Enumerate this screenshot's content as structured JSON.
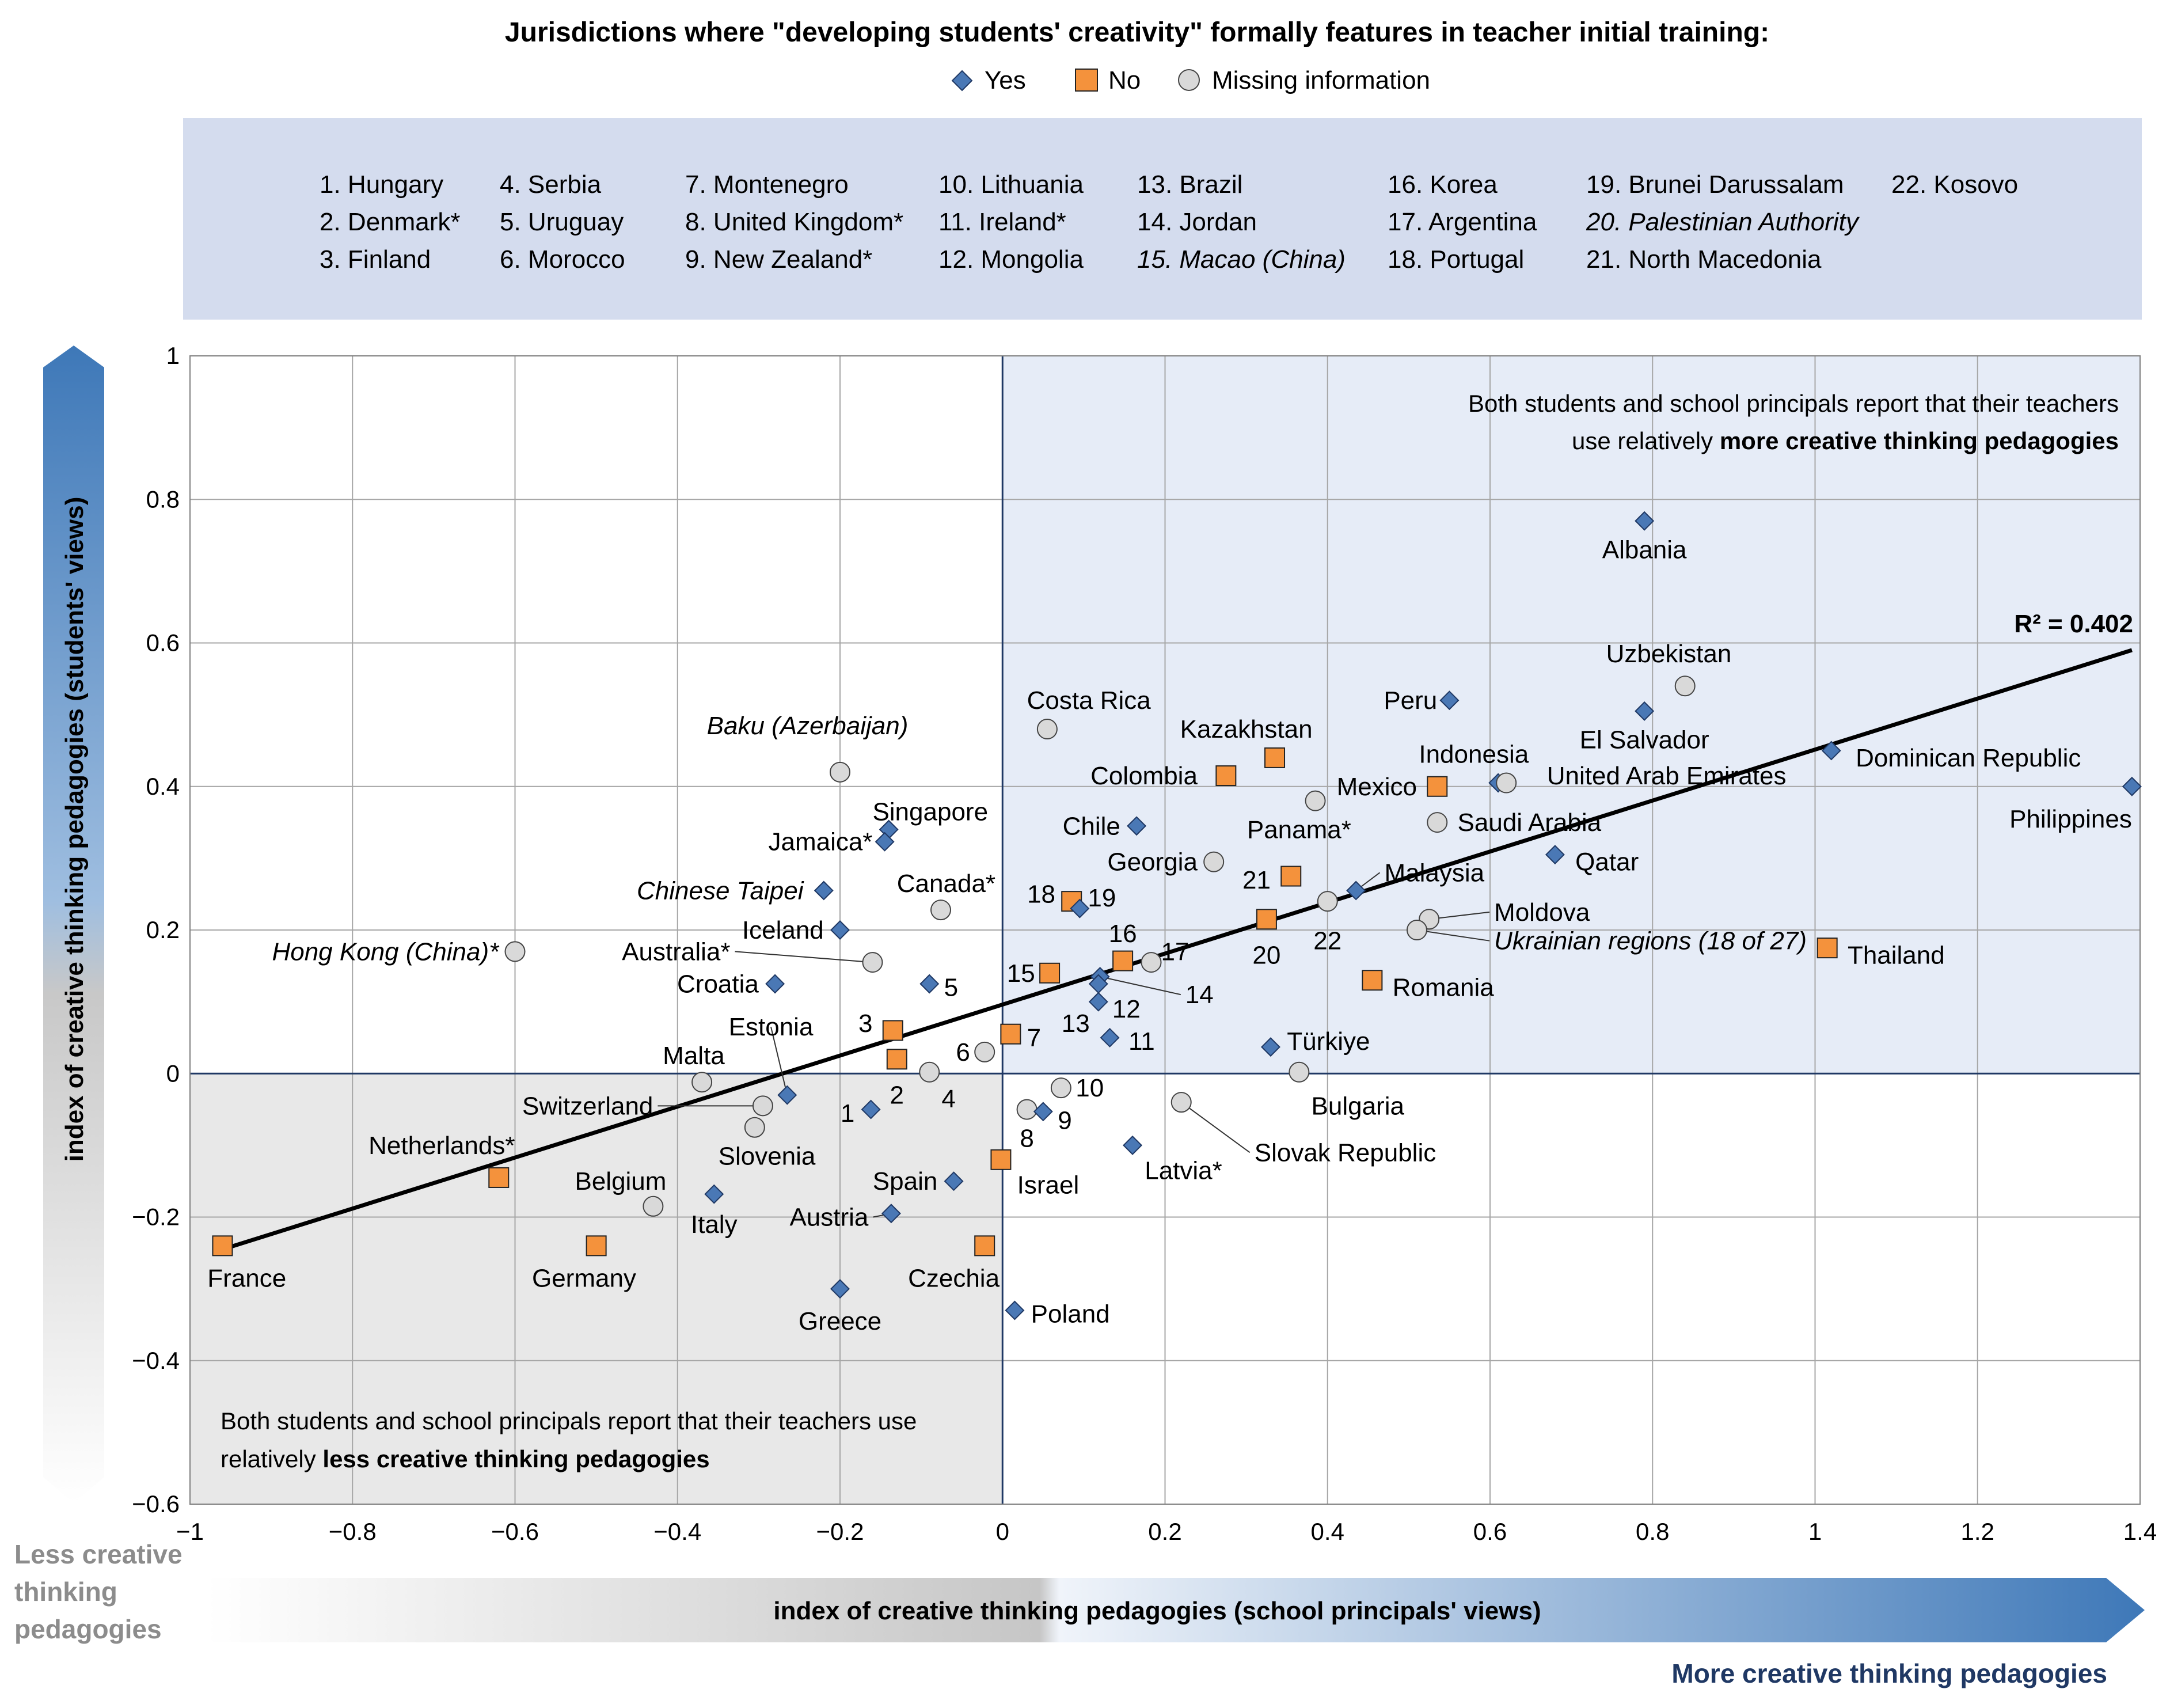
{
  "chart_data": {
    "type": "scatter",
    "title": "Jurisdictions where \"developing students' creativity\" formally features in teacher initial training:",
    "legend": [
      {
        "key": "yes",
        "label": "Yes"
      },
      {
        "key": "no",
        "label": "No"
      },
      {
        "key": "missing",
        "label": "Missing information"
      }
    ],
    "colors": {
      "yes": "#4a78b5",
      "no": "#f4923c",
      "missing": "#d9d9d9",
      "upper_right_shade": "#e6ecf7",
      "lower_left_shade": "#e8e8e8",
      "key_box": "#d4dcee",
      "accent_dark": "#1f3864",
      "arrow_blue": "#3e78b8",
      "arrow_gray": "#bdbdbd",
      "gray_text": "#8c8c8c"
    },
    "key_columns": [
      [
        "1. Hungary",
        "2. Denmark*",
        "3. Finland"
      ],
      [
        "4. Serbia",
        "5. Uruguay",
        "6. Morocco"
      ],
      [
        "7. Montenegro",
        "8. United Kingdom*",
        "9. New Zealand*"
      ],
      [
        "10. Lithuania",
        "11. Ireland*",
        "12. Mongolia"
      ],
      [
        "13. Brazil",
        "14. Jordan",
        "15. Macao (China)"
      ],
      [
        "16. Korea",
        "17. Argentina",
        "18. Portugal"
      ],
      [
        "19. Brunei Darussalam",
        "20. Palestinian Authority",
        "21. North Macedonia"
      ],
      [
        "22. Kosovo"
      ]
    ],
    "xlabel": "index of creative thinking pedagogies (school principals' views)",
    "ylabel": "index of creative thinking pedagogies (students' views)",
    "xlim": [
      -1,
      1.4
    ],
    "ylim": [
      -0.6,
      1
    ],
    "x_ticks": [
      {
        "v": -1,
        "t": "−1"
      },
      {
        "v": -0.8,
        "t": "−0.8"
      },
      {
        "v": -0.6,
        "t": "−0.6"
      },
      {
        "v": -0.4,
        "t": "−0.4"
      },
      {
        "v": -0.2,
        "t": "−0.2"
      },
      {
        "v": 0,
        "t": "0"
      },
      {
        "v": 0.2,
        "t": "0.2"
      },
      {
        "v": 0.4,
        "t": "0.4"
      },
      {
        "v": 0.6,
        "t": "0.6"
      },
      {
        "v": 0.8,
        "t": "0.8"
      },
      {
        "v": 1,
        "t": "1"
      },
      {
        "v": 1.2,
        "t": "1.2"
      },
      {
        "v": 1.4,
        "t": "1.4"
      }
    ],
    "y_ticks": [
      {
        "v": 1,
        "t": "1"
      },
      {
        "v": 0.8,
        "t": "0.8"
      },
      {
        "v": 0.6,
        "t": "0.6"
      },
      {
        "v": 0.4,
        "t": "0.4"
      },
      {
        "v": 0.2,
        "t": "0.2"
      },
      {
        "v": 0,
        "t": "0"
      },
      {
        "v": -0.2,
        "t": "−0.2"
      },
      {
        "v": -0.4,
        "t": "−0.4"
      },
      {
        "v": -0.6,
        "t": "−0.6"
      }
    ],
    "trendline": {
      "x": [
        -0.96,
        1.39
      ],
      "y": [
        -0.245,
        0.59
      ],
      "r2_label": "R² = 0.402"
    },
    "quadrant_notes": {
      "upper_right_line1": "Both students and school principals report that their teachers",
      "upper_right_line2_plain": "use relatively ",
      "upper_right_line2_bold": "more creative thinking pedagogies",
      "lower_left_line1": "Both students and school principals report that their teachers use",
      "lower_left_line2_plain": "relatively ",
      "lower_left_line2_bold": "less creative thinking pedagogies"
    },
    "corner_labels": {
      "less": [
        "Less creative",
        "thinking",
        "pedagogies"
      ],
      "more": "More creative thinking pedagogies"
    },
    "points": [
      {
        "name": "Albania",
        "x": 0.79,
        "y": 0.77,
        "cat": "yes",
        "lx": 0.79,
        "ly": 0.73,
        "anchor": "middle"
      },
      {
        "name": "Uzbekistan",
        "x": 0.84,
        "y": 0.54,
        "cat": "missing",
        "lx": 0.82,
        "ly": 0.585,
        "anchor": "middle"
      },
      {
        "name": "Peru",
        "x": 0.55,
        "y": 0.52,
        "cat": "yes",
        "lx": 0.535,
        "ly": 0.52,
        "anchor": "end"
      },
      {
        "name": "El Salvador",
        "x": 0.79,
        "y": 0.505,
        "cat": "yes",
        "lx": 0.79,
        "ly": 0.465,
        "anchor": "middle"
      },
      {
        "name": "Dominican Republic",
        "x": 1.02,
        "y": 0.45,
        "cat": "yes",
        "lx": 1.05,
        "ly": 0.44,
        "anchor": "start"
      },
      {
        "name": "Philippines",
        "x": 1.39,
        "y": 0.4,
        "cat": "yes",
        "lx": 1.39,
        "ly": 0.355,
        "anchor": "end"
      },
      {
        "name": "Costa Rica",
        "x": 0.055,
        "y": 0.48,
        "cat": "missing",
        "lx": 0.03,
        "ly": 0.52,
        "anchor": "start"
      },
      {
        "name": "Kazakhstan",
        "x": 0.335,
        "y": 0.44,
        "cat": "no",
        "lx": 0.3,
        "ly": 0.48,
        "anchor": "middle"
      },
      {
        "name": "Colombia",
        "x": 0.275,
        "y": 0.415,
        "cat": "no",
        "lx": 0.24,
        "ly": 0.415,
        "anchor": "end"
      },
      {
        "name": "Indonesia",
        "x": 0.61,
        "y": 0.405,
        "cat": "yes",
        "lx": 0.58,
        "ly": 0.445,
        "anchor": "middle"
      },
      {
        "name": "United Arab Emirates",
        "x": 0.62,
        "y": 0.405,
        "cat": "missing",
        "lx": 0.67,
        "ly": 0.415,
        "anchor": "start"
      },
      {
        "name": "Mexico",
        "x": 0.535,
        "y": 0.4,
        "cat": "no",
        "lx": 0.51,
        "ly": 0.4,
        "anchor": "end"
      },
      {
        "name": "Panama*",
        "x": 0.385,
        "y": 0.38,
        "cat": "missing",
        "lx": 0.365,
        "ly": 0.34,
        "anchor": "middle"
      },
      {
        "name": "Saudi Arabia",
        "x": 0.535,
        "y": 0.35,
        "cat": "missing",
        "lx": 0.56,
        "ly": 0.35,
        "anchor": "start"
      },
      {
        "name": "Chile",
        "x": 0.165,
        "y": 0.345,
        "cat": "yes",
        "lx": 0.145,
        "ly": 0.345,
        "anchor": "end"
      },
      {
        "name": "Qatar",
        "x": 0.68,
        "y": 0.305,
        "cat": "yes",
        "lx": 0.705,
        "ly": 0.295,
        "anchor": "start"
      },
      {
        "name": "Georgia",
        "x": 0.26,
        "y": 0.295,
        "cat": "missing",
        "lx": 0.24,
        "ly": 0.295,
        "anchor": "end"
      },
      {
        "name": "21",
        "x": 0.355,
        "y": 0.275,
        "cat": "no",
        "lx": 0.33,
        "ly": 0.27,
        "anchor": "end"
      },
      {
        "name": "Malaysia",
        "x": 0.435,
        "y": 0.255,
        "cat": "yes",
        "lx": 0.47,
        "ly": 0.28,
        "anchor": "start",
        "leader": true
      },
      {
        "name": "18",
        "x": 0.085,
        "y": 0.24,
        "cat": "no",
        "lx": 0.065,
        "ly": 0.25,
        "anchor": "end"
      },
      {
        "name": "19",
        "x": 0.095,
        "y": 0.23,
        "cat": "yes",
        "lx": 0.105,
        "ly": 0.245,
        "anchor": "start"
      },
      {
        "name": "22",
        "x": 0.4,
        "y": 0.24,
        "cat": "missing",
        "lx": 0.4,
        "ly": 0.185,
        "anchor": "middle"
      },
      {
        "name": "Moldova",
        "x": 0.525,
        "y": 0.215,
        "cat": "missing",
        "lx": 0.605,
        "ly": 0.225,
        "anchor": "start",
        "leader": true
      },
      {
        "name": "20",
        "x": 0.325,
        "y": 0.215,
        "cat": "no",
        "lx": 0.325,
        "ly": 0.165,
        "anchor": "middle"
      },
      {
        "name": "Ukrainian regions (18 of 27)",
        "x": 0.51,
        "y": 0.2,
        "cat": "missing",
        "lx": 0.605,
        "ly": 0.185,
        "anchor": "start",
        "leader": true
      },
      {
        "name": "Thailand",
        "x": 1.015,
        "y": 0.175,
        "cat": "no",
        "lx": 1.04,
        "ly": 0.165,
        "anchor": "start"
      },
      {
        "name": "16",
        "x": 0.148,
        "y": 0.157,
        "cat": "no",
        "lx": 0.148,
        "ly": 0.195,
        "anchor": "middle"
      },
      {
        "name": "17",
        "x": 0.183,
        "y": 0.155,
        "cat": "missing",
        "lx": 0.195,
        "ly": 0.17,
        "anchor": "start"
      },
      {
        "name": "15",
        "x": 0.058,
        "y": 0.14,
        "cat": "no",
        "lx": 0.04,
        "ly": 0.14,
        "anchor": "end"
      },
      {
        "name": "14",
        "x": 0.12,
        "y": 0.135,
        "cat": "yes",
        "lx": 0.225,
        "ly": 0.11,
        "anchor": "start",
        "leader": true
      },
      {
        "name": "Romania",
        "x": 0.455,
        "y": 0.13,
        "cat": "no",
        "lx": 0.48,
        "ly": 0.12,
        "anchor": "start"
      },
      {
        "name": "12",
        "x": 0.118,
        "y": 0.1,
        "cat": "yes",
        "lx": 0.135,
        "ly": 0.09,
        "anchor": "start"
      },
      {
        "name": "13",
        "x": 0.118,
        "y": 0.125,
        "cat": "yes",
        "lx": 0.09,
        "ly": 0.07,
        "anchor": "middle"
      },
      {
        "name": "11",
        "x": 0.132,
        "y": 0.05,
        "cat": "yes",
        "lx": 0.155,
        "ly": 0.045,
        "anchor": "start"
      },
      {
        "name": "Türkiye",
        "x": 0.33,
        "y": 0.037,
        "cat": "yes",
        "lx": 0.35,
        "ly": 0.045,
        "anchor": "start"
      },
      {
        "name": "7",
        "x": 0.01,
        "y": 0.055,
        "cat": "no",
        "lx": 0.03,
        "ly": 0.05,
        "anchor": "start"
      },
      {
        "name": "6",
        "x": -0.022,
        "y": 0.03,
        "cat": "missing",
        "lx": -0.04,
        "ly": 0.03,
        "anchor": "end"
      },
      {
        "name": "5",
        "x": -0.09,
        "y": 0.125,
        "cat": "yes",
        "lx": -0.072,
        "ly": 0.12,
        "anchor": "start"
      },
      {
        "name": "3",
        "x": -0.135,
        "y": 0.06,
        "cat": "no",
        "lx": -0.16,
        "ly": 0.07,
        "anchor": "end"
      },
      {
        "name": "2",
        "x": -0.13,
        "y": 0.02,
        "cat": "no",
        "lx": -0.13,
        "ly": -0.03,
        "anchor": "middle"
      },
      {
        "name": "4",
        "x": -0.09,
        "y": 0.002,
        "cat": "missing",
        "lx": -0.075,
        "ly": -0.035,
        "anchor": "start"
      },
      {
        "name": "1",
        "x": -0.162,
        "y": -0.05,
        "cat": "yes",
        "lx": -0.182,
        "ly": -0.055,
        "anchor": "end"
      },
      {
        "name": "Estonia",
        "x": -0.265,
        "y": -0.03,
        "cat": "yes",
        "lx": -0.285,
        "ly": 0.065,
        "anchor": "middle",
        "leader": true
      },
      {
        "name": "Malta",
        "x": -0.37,
        "y": -0.012,
        "cat": "missing",
        "lx": -0.38,
        "ly": 0.025,
        "anchor": "middle"
      },
      {
        "name": "Switzerland",
        "x": -0.295,
        "y": -0.045,
        "cat": "missing",
        "lx": -0.43,
        "ly": -0.045,
        "anchor": "end",
        "leader": true
      },
      {
        "name": "Slovenia",
        "x": -0.305,
        "y": -0.075,
        "cat": "missing",
        "lx": -0.29,
        "ly": -0.115,
        "anchor": "middle"
      },
      {
        "name": "10",
        "x": 0.072,
        "y": -0.02,
        "cat": "missing",
        "lx": 0.09,
        "ly": -0.02,
        "anchor": "start"
      },
      {
        "name": "Bulgaria",
        "x": 0.365,
        "y": 0.002,
        "cat": "missing",
        "lx": 0.38,
        "ly": -0.045,
        "anchor": "start"
      },
      {
        "name": "8",
        "x": 0.03,
        "y": -0.05,
        "cat": "missing",
        "lx": 0.03,
        "ly": -0.09,
        "anchor": "middle"
      },
      {
        "name": "9",
        "x": 0.05,
        "y": -0.053,
        "cat": "yes",
        "lx": 0.068,
        "ly": -0.065,
        "anchor": "start"
      },
      {
        "name": "Slovak Republic",
        "x": 0.22,
        "y": -0.04,
        "cat": "missing",
        "lx": 0.31,
        "ly": -0.11,
        "anchor": "start",
        "leader": true
      },
      {
        "name": "Latvia*",
        "x": 0.16,
        "y": -0.1,
        "cat": "yes",
        "lx": 0.175,
        "ly": -0.135,
        "anchor": "start"
      },
      {
        "name": "Israel",
        "x": -0.002,
        "y": -0.12,
        "cat": "no",
        "lx": 0.018,
        "ly": -0.155,
        "anchor": "start"
      },
      {
        "name": "Spain",
        "x": -0.06,
        "y": -0.15,
        "cat": "yes",
        "lx": -0.08,
        "ly": -0.15,
        "anchor": "end"
      },
      {
        "name": "Netherlands*",
        "x": -0.62,
        "y": -0.145,
        "cat": "no",
        "lx": -0.6,
        "ly": -0.1,
        "anchor": "end"
      },
      {
        "name": "Belgium",
        "x": -0.43,
        "y": -0.185,
        "cat": "missing",
        "lx": -0.47,
        "ly": -0.15,
        "anchor": "middle"
      },
      {
        "name": "Italy",
        "x": -0.355,
        "y": -0.168,
        "cat": "yes",
        "lx": -0.355,
        "ly": -0.21,
        "anchor": "middle"
      },
      {
        "name": "Austria",
        "x": -0.137,
        "y": -0.195,
        "cat": "yes",
        "lx": -0.165,
        "ly": -0.2,
        "anchor": "end",
        "leader": true
      },
      {
        "name": "France",
        "x": -0.96,
        "y": -0.24,
        "cat": "no",
        "lx": -0.93,
        "ly": -0.285,
        "anchor": "middle"
      },
      {
        "name": "Germany",
        "x": -0.5,
        "y": -0.24,
        "cat": "no",
        "lx": -0.515,
        "ly": -0.285,
        "anchor": "middle"
      },
      {
        "name": "Czechia",
        "x": -0.022,
        "y": -0.24,
        "cat": "no",
        "lx": -0.06,
        "ly": -0.285,
        "anchor": "middle"
      },
      {
        "name": "Greece",
        "x": -0.2,
        "y": -0.3,
        "cat": "yes",
        "lx": -0.2,
        "ly": -0.345,
        "anchor": "middle"
      },
      {
        "name": "Poland",
        "x": 0.015,
        "y": -0.33,
        "cat": "yes",
        "lx": 0.035,
        "ly": -0.335,
        "anchor": "start"
      },
      {
        "name": "Baku (Azerbaijan)",
        "x": -0.2,
        "y": 0.42,
        "cat": "missing",
        "lx": -0.24,
        "ly": 0.485,
        "anchor": "middle",
        "italic": true
      },
      {
        "name": "Singapore",
        "x": -0.14,
        "y": 0.34,
        "cat": "yes",
        "lx": -0.16,
        "ly": 0.365,
        "anchor": "start"
      },
      {
        "name": "Jamaica*",
        "x": -0.145,
        "y": 0.323,
        "cat": "yes",
        "lx": -0.16,
        "ly": 0.323,
        "anchor": "end"
      },
      {
        "name": "Chinese Taipei",
        "x": -0.22,
        "y": 0.255,
        "cat": "yes",
        "lx": -0.245,
        "ly": 0.255,
        "anchor": "end",
        "italic": true
      },
      {
        "name": "Canada*",
        "x": -0.076,
        "y": 0.228,
        "cat": "missing",
        "lx": -0.13,
        "ly": 0.265,
        "anchor": "start"
      },
      {
        "name": "Iceland",
        "x": -0.2,
        "y": 0.2,
        "cat": "yes",
        "lx": -0.22,
        "ly": 0.2,
        "anchor": "end"
      },
      {
        "name": "Hong Kong (China)*",
        "x": -0.6,
        "y": 0.17,
        "cat": "missing",
        "lx": -0.62,
        "ly": 0.17,
        "anchor": "end",
        "italic": true
      },
      {
        "name": "Australia*",
        "x": -0.16,
        "y": 0.155,
        "cat": "missing",
        "lx": -0.335,
        "ly": 0.17,
        "anchor": "end",
        "leader": true
      },
      {
        "name": "Croatia",
        "x": -0.28,
        "y": 0.125,
        "cat": "yes",
        "lx": -0.3,
        "ly": 0.125,
        "anchor": "end"
      }
    ]
  }
}
